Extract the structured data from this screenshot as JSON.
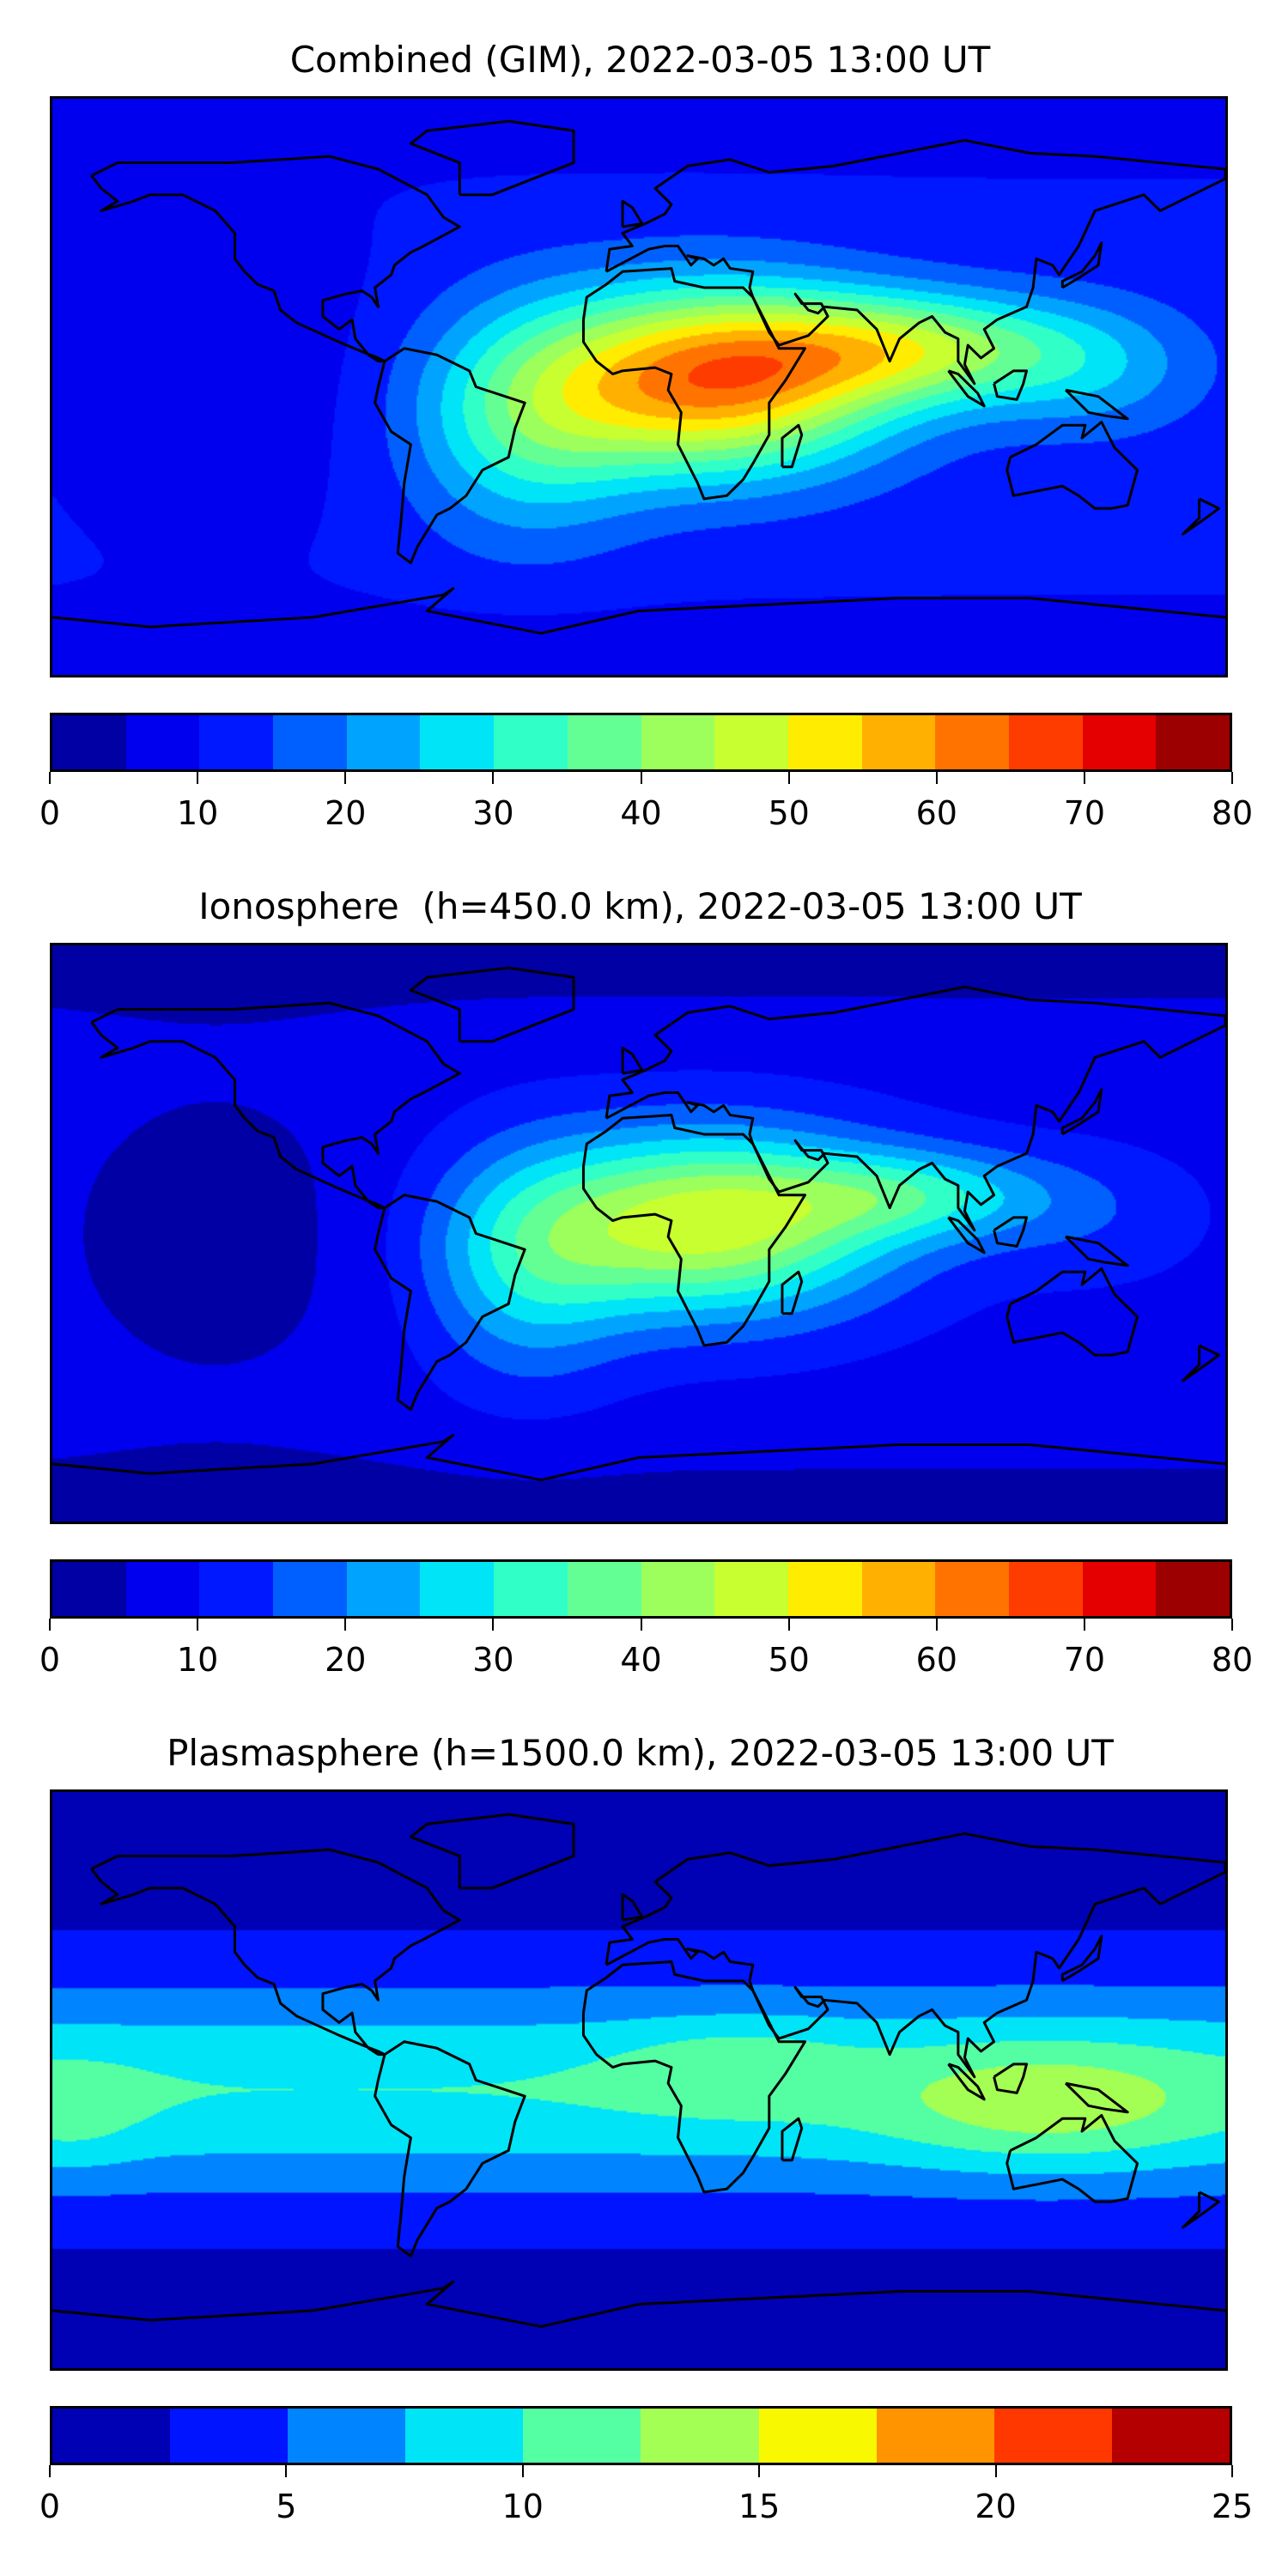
{
  "chart_data": [
    {
      "type": "heatmap",
      "title": "Combined (GIM), 2022-03-05 13:00 UT",
      "projection": "global lon/lat map with coastlines",
      "colorbar": {
        "range": [
          0,
          80
        ],
        "level_step": 5,
        "tick_labels": [
          "0",
          "10",
          "20",
          "30",
          "40",
          "50",
          "60",
          "70",
          "80"
        ],
        "colors": [
          "#0000a4",
          "#0000ee",
          "#0018ff",
          "#0060ff",
          "#00a4ff",
          "#00e4f8",
          "#30ffc8",
          "#64ff94",
          "#9cff5c",
          "#c8ff30",
          "#ffec00",
          "#ffb000",
          "#ff7400",
          "#ff3c00",
          "#e40000",
          "#9c0000"
        ]
      },
      "field": "maximum ~60-65 over central Africa, 50-55 band to southern Asia, minimum ~5-10 over Pacific"
    },
    {
      "type": "heatmap",
      "title": "Ionosphere  (h=450.0 km), 2022-03-05 13:00 UT",
      "projection": "global lon/lat map with coastlines",
      "colorbar": {
        "range": [
          0,
          80
        ],
        "level_step": 5,
        "tick_labels": [
          "0",
          "10",
          "20",
          "30",
          "40",
          "50",
          "60",
          "70",
          "80"
        ],
        "colors": [
          "#0000a4",
          "#0000ee",
          "#0018ff",
          "#0060ff",
          "#00a4ff",
          "#00e4f8",
          "#30ffc8",
          "#64ff94",
          "#9cff5c",
          "#c8ff30",
          "#ffec00",
          "#ffb000",
          "#ff7400",
          "#ff3c00",
          "#e40000",
          "#9c0000"
        ]
      },
      "field": "maximum ~50-55 over central Africa, minimum ~0-5 over Pacific and poles"
    },
    {
      "type": "heatmap",
      "title": "Plasmasphere (h=1500.0 km), 2022-03-05 13:00 UT",
      "projection": "global lon/lat map with coastlines",
      "colorbar": {
        "range": [
          0,
          25
        ],
        "level_step": 2.5,
        "tick_labels": [
          "0",
          "5",
          "10",
          "15",
          "20",
          "25"
        ],
        "colors": [
          "#0000b4",
          "#0014ff",
          "#0084ff",
          "#00e4f8",
          "#54ffa4",
          "#a4ff54",
          "#f8f800",
          "#ff9400",
          "#ff3800",
          "#b40000"
        ]
      },
      "field": "equatorial band ~7.5-12.5, maximum ~12.5-15 near Indonesia/Australia, <2.5 at poles"
    }
  ]
}
